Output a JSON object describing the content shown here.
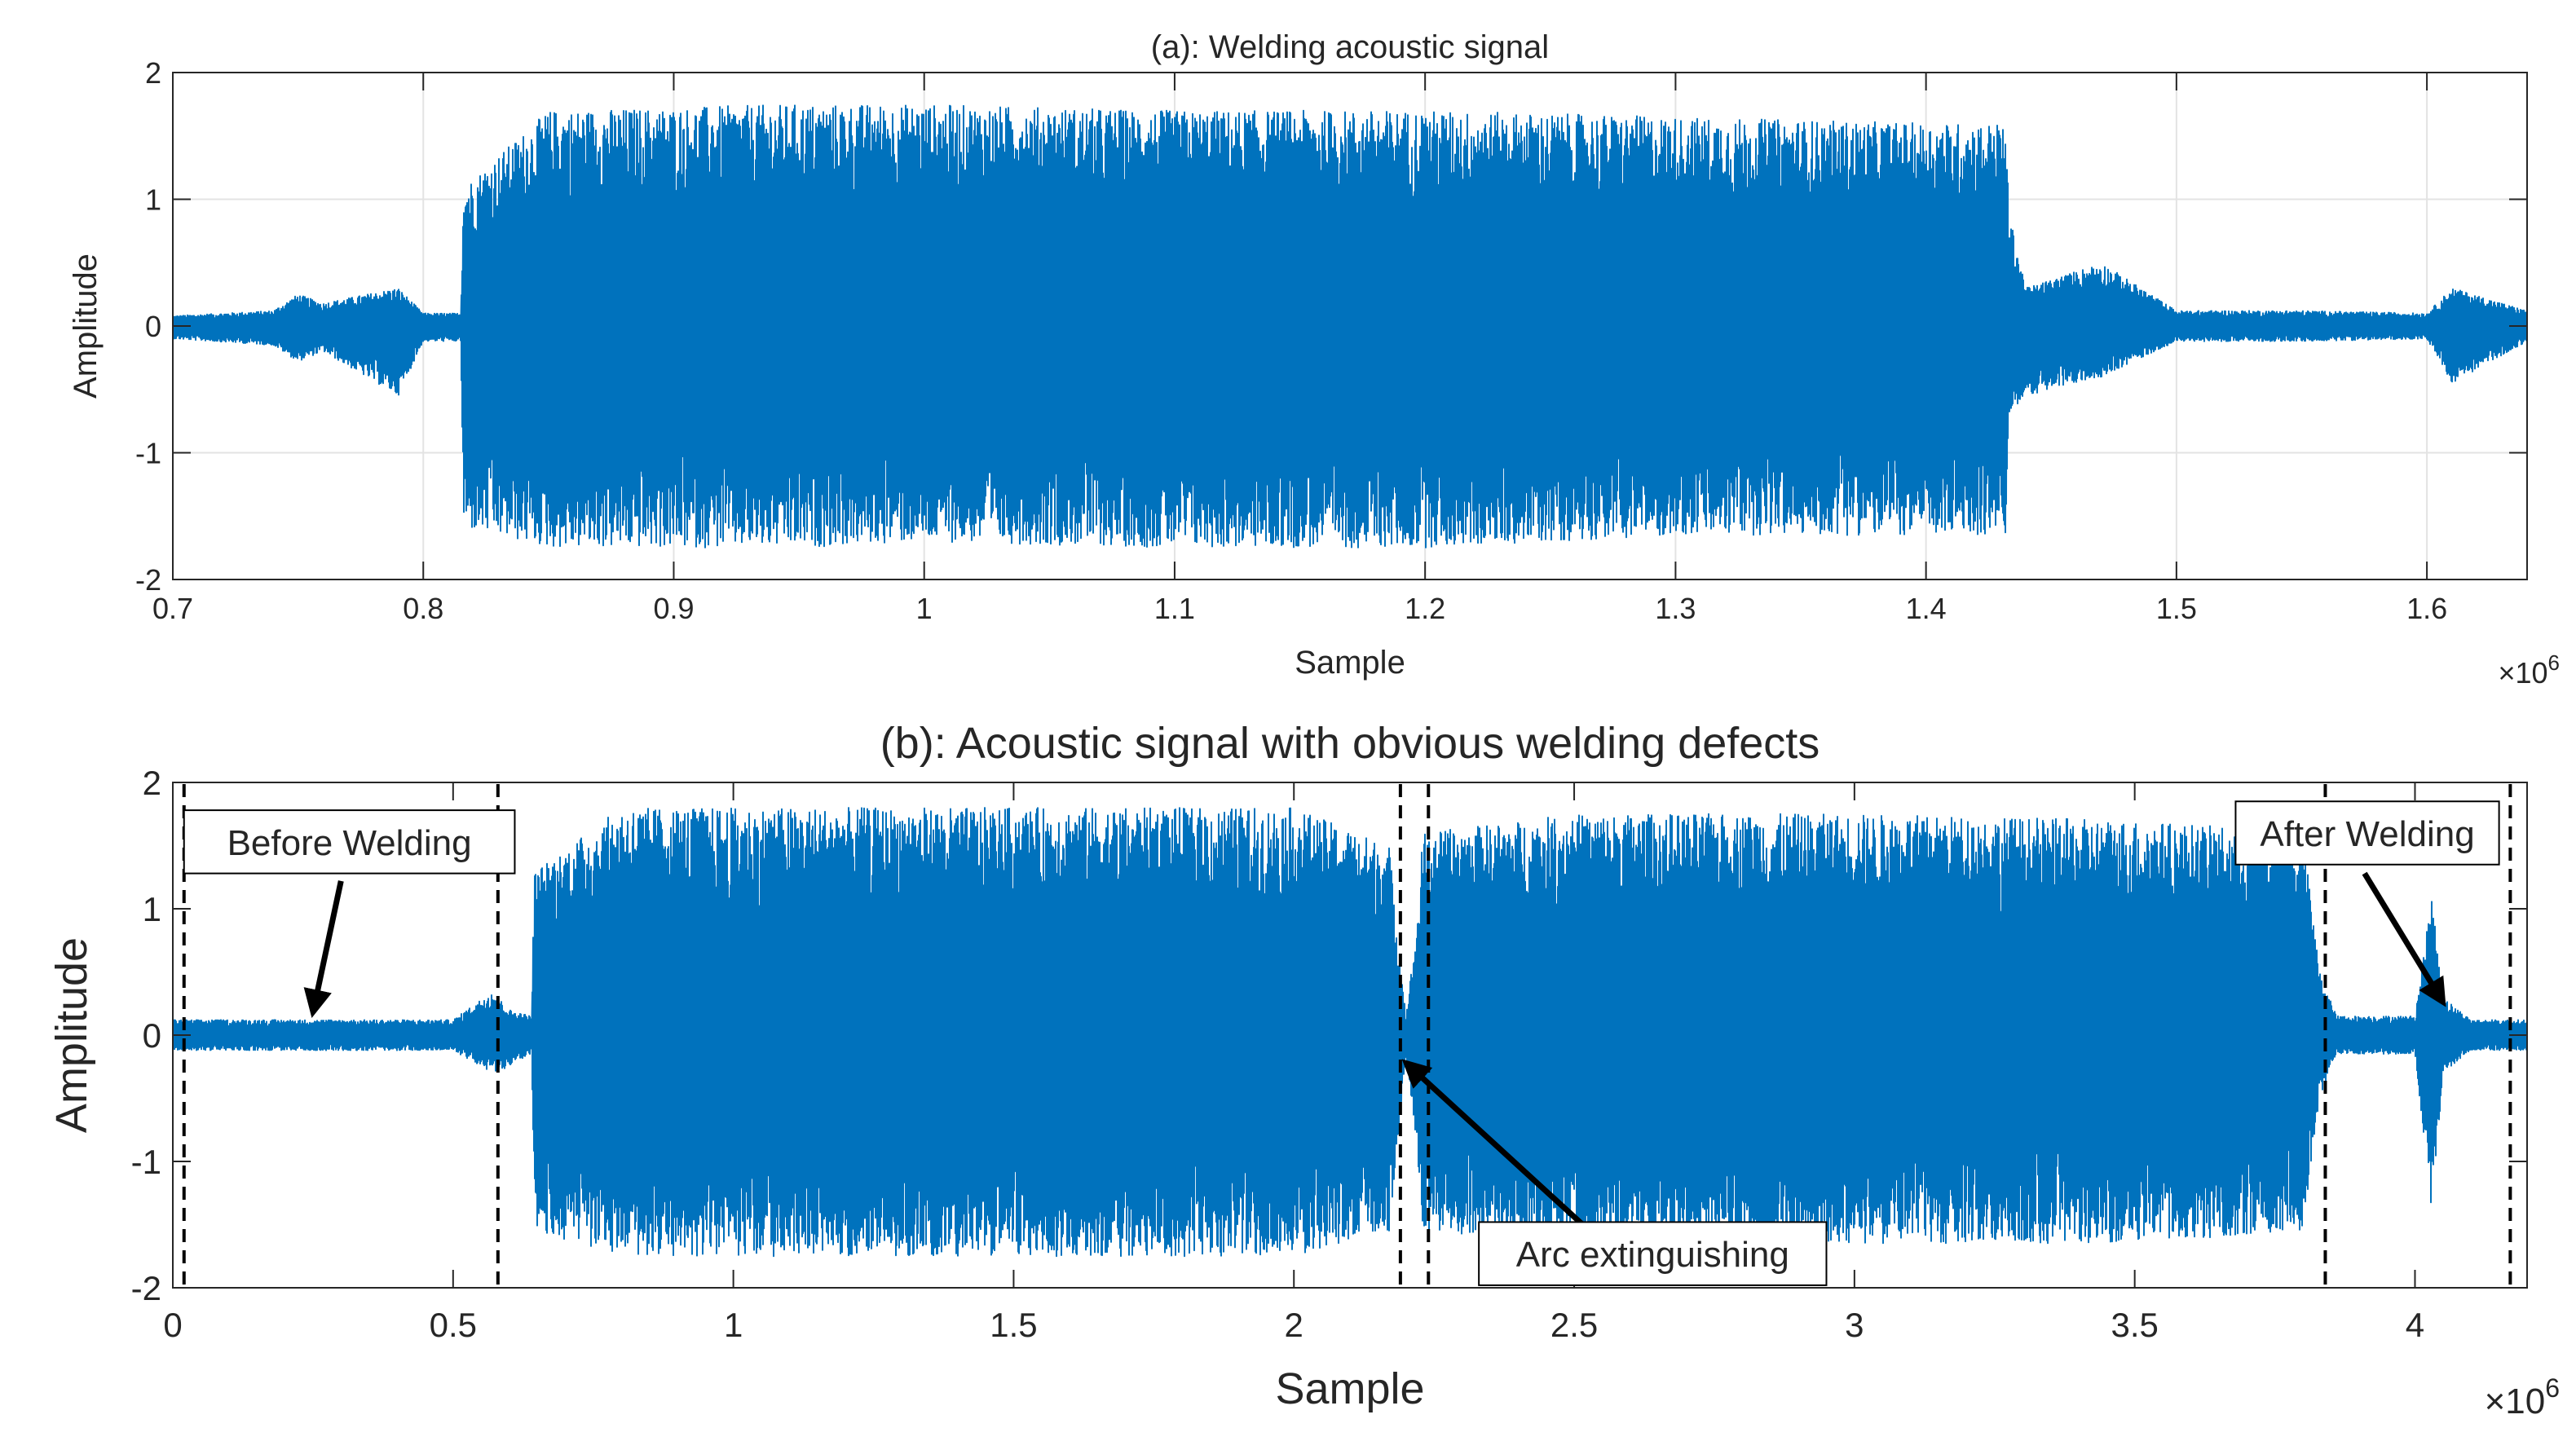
{
  "chart_data": [
    {
      "type": "line",
      "title": "(a): Welding acoustic signal",
      "xlabel": "Sample",
      "ylabel": "Amplitude",
      "x_exponent_label": "×10",
      "x_exponent": "6",
      "xlim": [
        0.7,
        1.64
      ],
      "ylim": [
        -2,
        2
      ],
      "xticks": [
        0.7,
        0.8,
        0.9,
        1.0,
        1.1,
        1.2,
        1.3,
        1.4,
        1.5,
        1.6
      ],
      "xtick_labels": [
        "0.7",
        "0.8",
        "0.9",
        "1",
        "1.1",
        "1.2",
        "1.3",
        "1.4",
        "1.5",
        "1.6"
      ],
      "yticks": [
        -2,
        -1,
        0,
        1,
        2
      ],
      "ytick_labels": [
        "-2",
        "-1",
        "0",
        "1",
        "2"
      ],
      "grid": true,
      "series_color": "#0072BD",
      "envelope": {
        "x": [
          0.7,
          0.74,
          0.75,
          0.76,
          0.79,
          0.8,
          0.815,
          0.816,
          0.85,
          0.95,
          1.0,
          1.1,
          1.2,
          1.3,
          1.4,
          1.432,
          1.433,
          1.44,
          1.47,
          1.5,
          1.55,
          1.6,
          1.61,
          1.64
        ],
        "max": [
          0.08,
          0.12,
          0.25,
          0.18,
          0.3,
          0.1,
          0.1,
          1.1,
          1.7,
          1.75,
          1.75,
          1.7,
          1.7,
          1.65,
          1.6,
          1.6,
          0.9,
          0.3,
          0.5,
          0.12,
          0.12,
          0.1,
          0.3,
          0.12
        ],
        "min": [
          -0.1,
          -0.15,
          -0.28,
          -0.2,
          -0.55,
          -0.12,
          -0.12,
          -1.6,
          -1.75,
          -1.75,
          -1.7,
          -1.75,
          -1.75,
          -1.65,
          -1.65,
          -1.65,
          -0.7,
          -0.55,
          -0.4,
          -0.12,
          -0.12,
          -0.1,
          -0.45,
          -0.12
        ]
      }
    },
    {
      "type": "line",
      "title": "(b): Acoustic signal with obvious welding defects",
      "xlabel": "Sample",
      "ylabel": "Amplitude",
      "x_exponent_label": "×10",
      "x_exponent": "6",
      "xlim": [
        0,
        4.2
      ],
      "ylim": [
        -2,
        2
      ],
      "xticks": [
        0,
        0.5,
        1,
        1.5,
        2,
        2.5,
        3,
        3.5,
        4
      ],
      "xtick_labels": [
        "0",
        "0.5",
        "1",
        "1.5",
        "2",
        "2.5",
        "3",
        "3.5",
        "4"
      ],
      "yticks": [
        -2,
        -1,
        0,
        1,
        2
      ],
      "ytick_labels": [
        "-2",
        "-1",
        "0",
        "1",
        "2"
      ],
      "grid": false,
      "series_color": "#0072BD",
      "envelope": {
        "x": [
          0,
          0.5,
          0.57,
          0.6,
          0.64,
          0.645,
          0.8,
          1.0,
          1.5,
          2.0,
          2.17,
          2.19,
          2.2,
          2.22,
          2.23,
          2.5,
          3.0,
          3.5,
          3.8,
          3.83,
          3.86,
          4.0,
          4.03,
          4.05,
          4.1,
          4.2
        ],
        "max": [
          0.12,
          0.12,
          0.35,
          0.2,
          0.15,
          1.3,
          1.8,
          1.8,
          1.8,
          1.8,
          1.5,
          0.6,
          0.15,
          0.9,
          1.6,
          1.75,
          1.75,
          1.7,
          1.6,
          0.5,
          0.15,
          0.15,
          1.1,
          0.3,
          0.12,
          0.12
        ],
        "min": [
          -0.12,
          -0.12,
          -0.3,
          -0.25,
          -0.15,
          -1.55,
          -1.75,
          -1.75,
          -1.75,
          -1.75,
          -1.55,
          -0.6,
          -0.15,
          -0.9,
          -1.55,
          -1.65,
          -1.65,
          -1.65,
          -1.55,
          -0.5,
          -0.15,
          -0.15,
          -1.4,
          -0.3,
          -0.12,
          -0.12
        ]
      },
      "dashed_lines_x": [
        0.02,
        0.58,
        2.19,
        2.24,
        3.84,
        4.17
      ],
      "annotations": [
        {
          "text": "Before Welding",
          "box_x": [
            0.02,
            0.61
          ],
          "box_y": [
            1.28,
            1.78
          ],
          "arrow_from": [
            0.3,
            1.22
          ],
          "arrow_to": [
            0.25,
            0.18
          ]
        },
        {
          "text": "Arc extinguishing",
          "box_x": [
            2.33,
            2.95
          ],
          "box_y": [
            -1.98,
            -1.48
          ],
          "arrow_from": [
            2.52,
            -1.52
          ],
          "arrow_to": [
            2.2,
            -0.22
          ]
        },
        {
          "text": "After Welding",
          "box_x": [
            3.68,
            4.15
          ],
          "box_y": [
            1.35,
            1.85
          ],
          "arrow_from": [
            3.91,
            1.28
          ],
          "arrow_to": [
            4.05,
            0.26
          ]
        }
      ]
    }
  ]
}
